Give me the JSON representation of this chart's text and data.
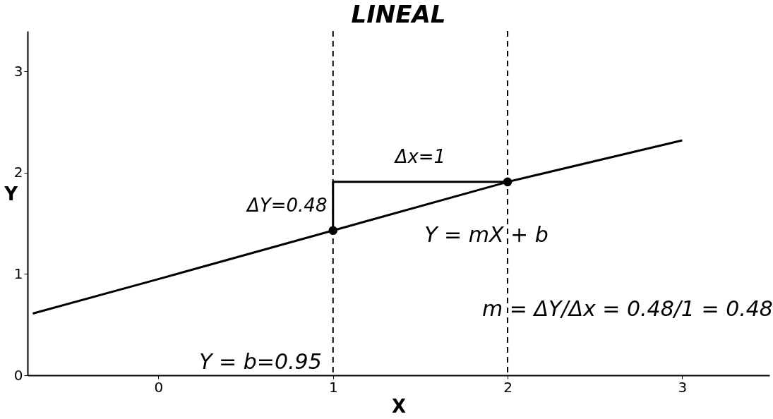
{
  "chart_data": {
    "type": "line",
    "title": "LINEAL",
    "xlabel": "X",
    "ylabel": "Y",
    "xlim": [
      -0.75,
      3.5
    ],
    "ylim": [
      0,
      3.4
    ],
    "xticks": [
      0,
      1,
      2,
      3
    ],
    "yticks": [
      0,
      1,
      2,
      3
    ],
    "grid": false,
    "series": [
      {
        "color": "#000000",
        "marker": "none",
        "line_style": "solid",
        "x": [
          -0.72,
          0,
          1,
          2,
          3
        ],
        "values": [
          0.61,
          0.95,
          1.43,
          1.91,
          2.32
        ]
      },
      {
        "type": "line",
        "color": "#000000",
        "marker": "none",
        "line_style": "solid",
        "x": [
          1,
          1,
          2
        ],
        "values": [
          1.43,
          1.91,
          1.91
        ]
      },
      {
        "type": "scatter",
        "color": "#000000",
        "marker": "circle",
        "x": [
          1,
          2
        ],
        "values": [
          1.43,
          1.91
        ]
      }
    ],
    "ref_lines": [
      {
        "axis": "x",
        "value": 1,
        "label": null,
        "line_style": "dashed"
      },
      {
        "axis": "x",
        "value": 2,
        "label": null,
        "line_style": "dashed"
      }
    ],
    "annotations": [
      {
        "text": "Δx=1",
        "x": 1.5,
        "y": 1.91
      },
      {
        "text": "ΔY=0.48",
        "x": 1,
        "y": 1.67
      },
      "Y = mX + b",
      "Y = b=0.95",
      "m = ΔY/Δx = 0.48/1 = 0.48"
    ]
  }
}
